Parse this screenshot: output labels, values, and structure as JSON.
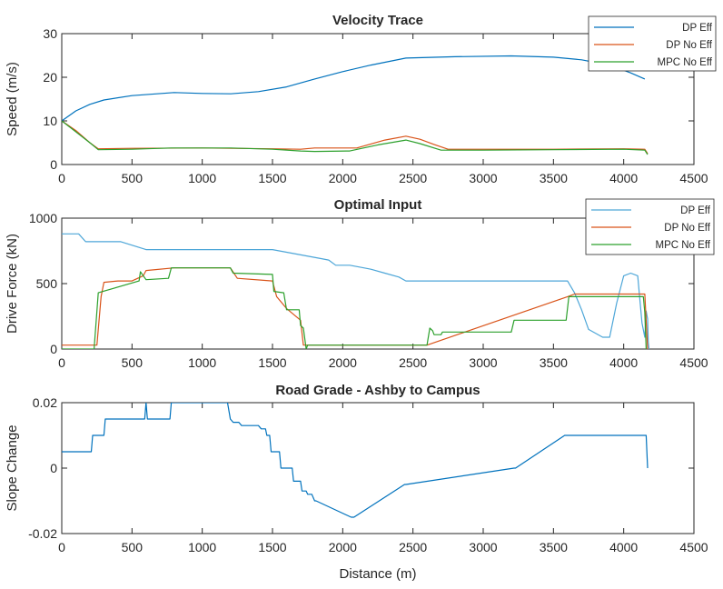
{
  "chart_data": [
    {
      "type": "line",
      "title": "Velocity Trace",
      "xlabel": "",
      "ylabel": "Speed (m/s)",
      "xlim": [
        0,
        4500
      ],
      "ylim": [
        0,
        30
      ],
      "xticks": [
        0,
        500,
        1000,
        1500,
        2000,
        2500,
        3000,
        3500,
        4000,
        4500
      ],
      "yticks": [
        0,
        10,
        20,
        30
      ],
      "legend_position": "top-right",
      "series": [
        {
          "name": "DP Eff",
          "color": "#0072BD",
          "x": [
            0,
            100,
            200,
            300,
            500,
            800,
            1000,
            1200,
            1400,
            1600,
            1800,
            2000,
            2200,
            2450,
            2800,
            3200,
            3500,
            3700,
            3900,
            4050,
            4150
          ],
          "y": [
            10,
            12.3,
            13.8,
            14.8,
            15.8,
            16.5,
            16.3,
            16.2,
            16.7,
            17.8,
            19.6,
            21.3,
            22.8,
            24.4,
            24.7,
            24.9,
            24.6,
            24.0,
            22.8,
            21.0,
            19.6
          ]
        },
        {
          "name": "DP No Eff",
          "color": "#D95319",
          "x": [
            0,
            100,
            200,
            260,
            500,
            1000,
            1500,
            1700,
            1800,
            2100,
            2300,
            2450,
            2550,
            2650,
            2750,
            3000,
            3500,
            4000,
            4150,
            4170
          ],
          "y": [
            10,
            7.8,
            5.0,
            3.6,
            3.7,
            3.8,
            3.6,
            3.5,
            3.8,
            3.8,
            5.6,
            6.5,
            5.8,
            4.6,
            3.5,
            3.5,
            3.5,
            3.6,
            3.5,
            2.5
          ]
        },
        {
          "name": "MPC No Eff",
          "color": "#2CA02C",
          "x": [
            0,
            100,
            200,
            260,
            500,
            780,
            1200,
            1500,
            1700,
            1800,
            2050,
            2250,
            2450,
            2550,
            2700,
            3000,
            3500,
            4000,
            4150,
            4170
          ],
          "y": [
            10,
            7.5,
            5.0,
            3.4,
            3.5,
            3.8,
            3.8,
            3.5,
            3.1,
            3.0,
            3.1,
            4.5,
            5.6,
            4.8,
            3.3,
            3.3,
            3.4,
            3.5,
            3.3,
            2.3
          ]
        }
      ]
    },
    {
      "type": "line",
      "title": "Optimal Input",
      "xlabel": "",
      "ylabel": "Drive Force (kN)",
      "xlim": [
        0,
        4500
      ],
      "ylim": [
        0,
        1000
      ],
      "xticks": [
        0,
        500,
        1000,
        1500,
        2000,
        2500,
        3000,
        3500,
        4000,
        4500
      ],
      "yticks": [
        0,
        500,
        1000
      ],
      "legend_position": "top-right",
      "series": [
        {
          "name": "DP Eff",
          "color": "#4DA6D8",
          "x": [
            0,
            120,
            170,
            420,
            600,
            1500,
            1850,
            1900,
            1950,
            2050,
            2150,
            2200,
            2300,
            2400,
            2450,
            3600,
            3650,
            3700,
            3750,
            3850,
            3900,
            3950,
            4000,
            4050,
            4100,
            4130,
            4150,
            4160,
            4170,
            4175,
            4180
          ],
          "y": [
            880,
            880,
            820,
            820,
            760,
            760,
            690,
            680,
            640,
            640,
            620,
            610,
            580,
            550,
            520,
            520,
            430,
            300,
            150,
            90,
            90,
            350,
            560,
            580,
            560,
            200,
            90,
            290,
            230,
            60,
            0
          ]
        },
        {
          "name": "DP No Eff",
          "color": "#D95319",
          "x": [
            0,
            250,
            280,
            300,
            400,
            500,
            580,
            600,
            800,
            1200,
            1250,
            1500,
            1530,
            1600,
            1700,
            1720,
            2000,
            2600,
            3600,
            3650,
            4150,
            4170
          ],
          "y": [
            30,
            30,
            400,
            510,
            520,
            520,
            560,
            600,
            620,
            620,
            540,
            520,
            400,
            310,
            220,
            30,
            30,
            30,
            400,
            420,
            420,
            0
          ]
        },
        {
          "name": "MPC No Eff",
          "color": "#2CA02C",
          "x": [
            0,
            230,
            260,
            550,
            560,
            600,
            760,
            780,
            1200,
            1220,
            1500,
            1510,
            1580,
            1600,
            1690,
            1700,
            1720,
            1740,
            1750,
            2050,
            2600,
            2620,
            2640,
            2650,
            2700,
            2710,
            3200,
            3220,
            3590,
            3610,
            4140,
            4150,
            4160
          ],
          "y": [
            0,
            0,
            430,
            520,
            590,
            530,
            540,
            620,
            620,
            580,
            570,
            440,
            430,
            300,
            300,
            180,
            160,
            0,
            30,
            30,
            30,
            160,
            140,
            110,
            110,
            130,
            130,
            220,
            220,
            400,
            400,
            280,
            0
          ]
        }
      ]
    },
    {
      "type": "line",
      "title": "Road Grade - Ashby to Campus",
      "xlabel": "Distance (m)",
      "ylabel": "Slope Change",
      "xlim": [
        0,
        4500
      ],
      "ylim": [
        -0.02,
        0.02
      ],
      "xticks": [
        0,
        500,
        1000,
        1500,
        2000,
        2500,
        3000,
        3500,
        4000,
        4500
      ],
      "yticks": [
        -0.02,
        0,
        0.02
      ],
      "ytick_labels": [
        "-0.02",
        "0",
        "0.02"
      ],
      "legend_position": "none",
      "series": [
        {
          "name": "",
          "color": "#0072BD",
          "x": [
            0,
            210,
            220,
            300,
            310,
            590,
            600,
            610,
            770,
            780,
            1180,
            1200,
            1220,
            1260,
            1280,
            1400,
            1420,
            1450,
            1460,
            1480,
            1490,
            1550,
            1560,
            1640,
            1650,
            1700,
            1710,
            1740,
            1750,
            1780,
            1800,
            1810,
            2060,
            2080,
            2440,
            2450,
            3220,
            3230,
            3580,
            3590,
            4160,
            4170
          ],
          "y": [
            0.005,
            0.005,
            0.01,
            0.01,
            0.015,
            0.015,
            0.02,
            0.015,
            0.015,
            0.02,
            0.02,
            0.015,
            0.014,
            0.014,
            0.013,
            0.013,
            0.012,
            0.012,
            0.01,
            0.01,
            0.005,
            0.005,
            0.0,
            0.0,
            -0.004,
            -0.004,
            -0.007,
            -0.007,
            -0.008,
            -0.008,
            -0.01,
            -0.01,
            -0.015,
            -0.015,
            -0.005,
            -0.005,
            0.0,
            0.0,
            0.01,
            0.01,
            0.01,
            0.0
          ]
        }
      ]
    }
  ]
}
